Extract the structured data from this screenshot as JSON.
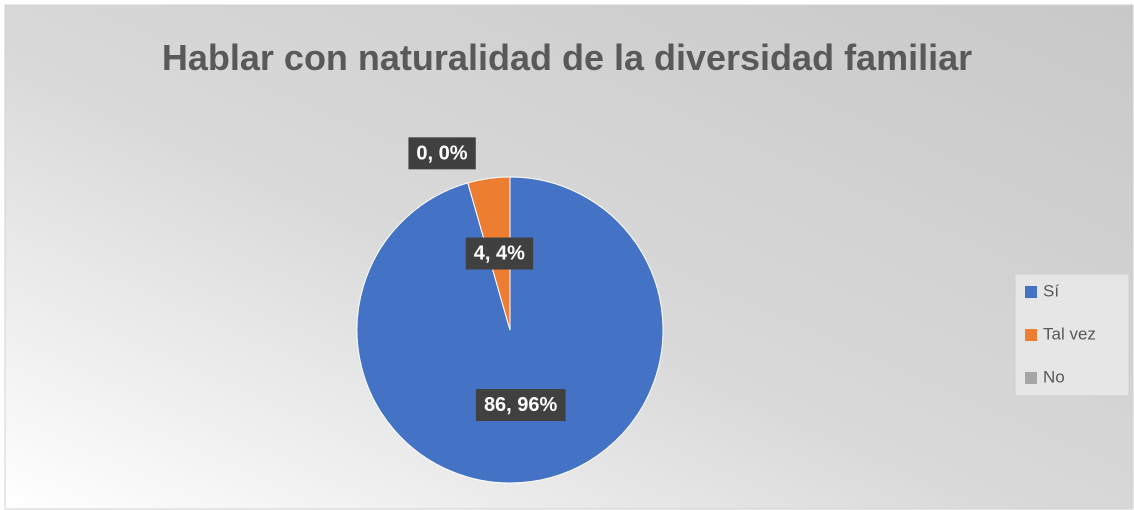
{
  "chart_data": {
    "type": "pie",
    "title": "Hablar con naturalidad de la diversidad familiar",
    "categories": [
      "Sí",
      "Tal vez",
      "No"
    ],
    "values": [
      86,
      4,
      0
    ],
    "value_labels": [
      "86, 96%",
      "4, 4%",
      "0, 0%"
    ],
    "colors": [
      "#4472c4",
      "#ed7d31",
      "#a5a5a5"
    ],
    "legend": "right"
  }
}
